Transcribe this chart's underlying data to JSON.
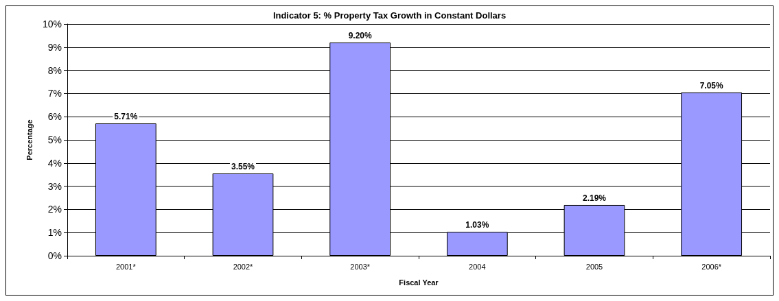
{
  "chart_data": {
    "type": "bar",
    "title": "Indicator 5: % Property Tax Growth in Constant Dollars",
    "xlabel": "Fiscal Year",
    "ylabel": "Percentage",
    "categories": [
      "2001*",
      "2002*",
      "2003*",
      "2004",
      "2005",
      "2006*"
    ],
    "values": [
      5.71,
      3.55,
      9.2,
      1.03,
      2.19,
      7.05
    ],
    "value_labels": [
      "5.71%",
      "3.55%",
      "9.20%",
      "1.03%",
      "2.19%",
      "7.05%"
    ],
    "color": "#9999ff",
    "ylim": [
      0,
      10
    ],
    "yticks": [
      {
        "value": 0,
        "label": "0%"
      },
      {
        "value": 1,
        "label": "1%"
      },
      {
        "value": 2,
        "label": "2%"
      },
      {
        "value": 3,
        "label": "3%"
      },
      {
        "value": 4,
        "label": "4%"
      },
      {
        "value": 5,
        "label": "5%"
      },
      {
        "value": 6,
        "label": "6%"
      },
      {
        "value": 7,
        "label": "7%"
      },
      {
        "value": 8,
        "label": "8%"
      },
      {
        "value": 9,
        "label": "9%"
      },
      {
        "value": 10,
        "label": "10%"
      }
    ],
    "grid": "y"
  }
}
